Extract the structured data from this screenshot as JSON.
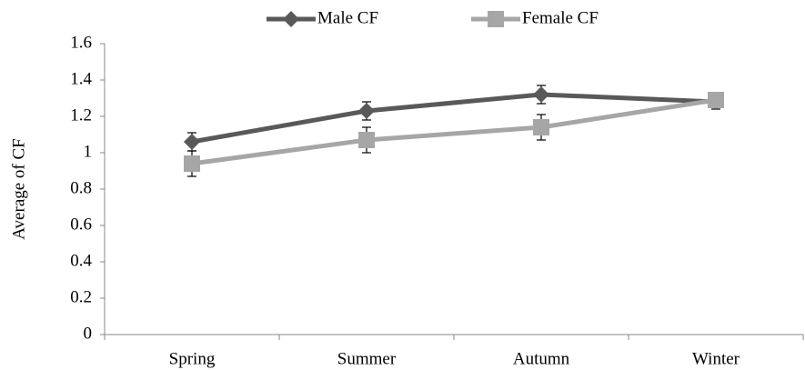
{
  "chart_data": {
    "type": "line",
    "y_label": "Average of CF",
    "categories": [
      "Spring",
      "Summer",
      "Autumn",
      "Winter"
    ],
    "series": [
      {
        "name": "Male CF",
        "color": "#595959",
        "marker": "diamond",
        "values": [
          1.06,
          1.23,
          1.32,
          1.28
        ],
        "errors": [
          0.05,
          0.05,
          0.05,
          0.04
        ]
      },
      {
        "name": "Female CF",
        "color": "#a6a6a6",
        "marker": "square",
        "values": [
          0.94,
          1.07,
          1.14,
          1.29
        ],
        "errors": [
          0.07,
          0.07,
          0.07,
          0.04
        ]
      }
    ],
    "ylim": [
      0,
      1.6
    ],
    "yticks": [
      0,
      0.2,
      0.4,
      0.6,
      0.8,
      1,
      1.2,
      1.4,
      1.6
    ],
    "grid": false,
    "legend": "top"
  }
}
